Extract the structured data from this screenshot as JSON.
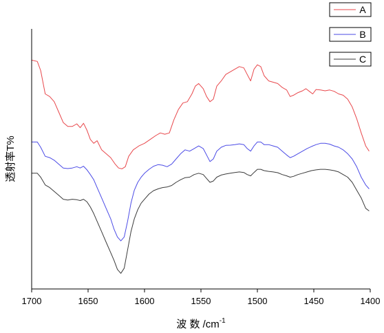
{
  "chart_data": {
    "type": "line",
    "xlabel": "波 数 /cm",
    "xlabel_sup": "-1",
    "ylabel": "透射率T%",
    "xlim": [
      1700,
      1400
    ],
    "x_reversed": true,
    "x_ticks": [
      "1700",
      "1650",
      "1600",
      "1550",
      "1500",
      "1450",
      "1400"
    ],
    "y_tick_labels": false,
    "grid": false,
    "legend_position": "top-right",
    "series": [
      {
        "name": "A",
        "color": "#e8474b",
        "points": [
          [
            1700,
            0.88
          ],
          [
            1695,
            0.875
          ],
          [
            1692,
            0.84
          ],
          [
            1688,
            0.75
          ],
          [
            1684,
            0.74
          ],
          [
            1680,
            0.72
          ],
          [
            1676,
            0.68
          ],
          [
            1672,
            0.64
          ],
          [
            1668,
            0.625
          ],
          [
            1664,
            0.625
          ],
          [
            1660,
            0.635
          ],
          [
            1657,
            0.62
          ],
          [
            1654,
            0.637
          ],
          [
            1651,
            0.61
          ],
          [
            1648,
            0.575
          ],
          [
            1645,
            0.56
          ],
          [
            1642,
            0.57
          ],
          [
            1638,
            0.535
          ],
          [
            1634,
            0.52
          ],
          [
            1630,
            0.505
          ],
          [
            1626,
            0.48
          ],
          [
            1623,
            0.465
          ],
          [
            1620,
            0.462
          ],
          [
            1617,
            0.47
          ],
          [
            1614,
            0.51
          ],
          [
            1610,
            0.535
          ],
          [
            1605,
            0.55
          ],
          [
            1600,
            0.56
          ],
          [
            1595,
            0.575
          ],
          [
            1590,
            0.59
          ],
          [
            1586,
            0.6
          ],
          [
            1582,
            0.595
          ],
          [
            1578,
            0.6
          ],
          [
            1574,
            0.65
          ],
          [
            1570,
            0.69
          ],
          [
            1566,
            0.715
          ],
          [
            1562,
            0.72
          ],
          [
            1558,
            0.75
          ],
          [
            1555,
            0.78
          ],
          [
            1552,
            0.79
          ],
          [
            1548,
            0.77
          ],
          [
            1545,
            0.74
          ],
          [
            1542,
            0.72
          ],
          [
            1539,
            0.73
          ],
          [
            1536,
            0.78
          ],
          [
            1532,
            0.8
          ],
          [
            1528,
            0.825
          ],
          [
            1524,
            0.835
          ],
          [
            1520,
            0.845
          ],
          [
            1516,
            0.855
          ],
          [
            1512,
            0.85
          ],
          [
            1509,
            0.825
          ],
          [
            1506,
            0.8
          ],
          [
            1503,
            0.845
          ],
          [
            1500,
            0.862
          ],
          [
            1497,
            0.855
          ],
          [
            1494,
            0.82
          ],
          [
            1490,
            0.8
          ],
          [
            1486,
            0.795
          ],
          [
            1482,
            0.79
          ],
          [
            1478,
            0.775
          ],
          [
            1474,
            0.765
          ],
          [
            1471,
            0.74
          ],
          [
            1468,
            0.745
          ],
          [
            1464,
            0.755
          ],
          [
            1460,
            0.762
          ],
          [
            1457,
            0.77
          ],
          [
            1454,
            0.76
          ],
          [
            1451,
            0.75
          ],
          [
            1448,
            0.767
          ],
          [
            1444,
            0.765
          ],
          [
            1440,
            0.762
          ],
          [
            1436,
            0.765
          ],
          [
            1432,
            0.76
          ],
          [
            1428,
            0.75
          ],
          [
            1424,
            0.745
          ],
          [
            1420,
            0.73
          ],
          [
            1416,
            0.7
          ],
          [
            1412,
            0.655
          ],
          [
            1408,
            0.6
          ],
          [
            1404,
            0.55
          ],
          [
            1401,
            0.53
          ]
        ]
      },
      {
        "name": "B",
        "color": "#4a4ae6",
        "points": [
          [
            1700,
            0.565
          ],
          [
            1695,
            0.565
          ],
          [
            1692,
            0.545
          ],
          [
            1688,
            0.51
          ],
          [
            1684,
            0.505
          ],
          [
            1680,
            0.495
          ],
          [
            1676,
            0.48
          ],
          [
            1672,
            0.465
          ],
          [
            1668,
            0.463
          ],
          [
            1664,
            0.465
          ],
          [
            1660,
            0.47
          ],
          [
            1657,
            0.465
          ],
          [
            1654,
            0.472
          ],
          [
            1651,
            0.458
          ],
          [
            1648,
            0.44
          ],
          [
            1645,
            0.42
          ],
          [
            1642,
            0.39
          ],
          [
            1638,
            0.35
          ],
          [
            1634,
            0.31
          ],
          [
            1630,
            0.27
          ],
          [
            1627,
            0.23
          ],
          [
            1624,
            0.2
          ],
          [
            1621,
            0.185
          ],
          [
            1618,
            0.2
          ],
          [
            1615,
            0.26
          ],
          [
            1612,
            0.33
          ],
          [
            1609,
            0.38
          ],
          [
            1606,
            0.41
          ],
          [
            1603,
            0.43
          ],
          [
            1600,
            0.445
          ],
          [
            1596,
            0.46
          ],
          [
            1592,
            0.472
          ],
          [
            1588,
            0.478
          ],
          [
            1584,
            0.476
          ],
          [
            1580,
            0.47
          ],
          [
            1576,
            0.48
          ],
          [
            1572,
            0.5
          ],
          [
            1568,
            0.52
          ],
          [
            1564,
            0.535
          ],
          [
            1560,
            0.53
          ],
          [
            1556,
            0.54
          ],
          [
            1552,
            0.55
          ],
          [
            1548,
            0.54
          ],
          [
            1545,
            0.515
          ],
          [
            1542,
            0.49
          ],
          [
            1539,
            0.5
          ],
          [
            1536,
            0.53
          ],
          [
            1532,
            0.545
          ],
          [
            1528,
            0.552
          ],
          [
            1524,
            0.553
          ],
          [
            1520,
            0.555
          ],
          [
            1516,
            0.558
          ],
          [
            1512,
            0.555
          ],
          [
            1509,
            0.54
          ],
          [
            1506,
            0.53
          ],
          [
            1503,
            0.55
          ],
          [
            1500,
            0.565
          ],
          [
            1497,
            0.565
          ],
          [
            1494,
            0.555
          ],
          [
            1490,
            0.555
          ],
          [
            1486,
            0.55
          ],
          [
            1482,
            0.545
          ],
          [
            1478,
            0.53
          ],
          [
            1474,
            0.515
          ],
          [
            1471,
            0.505
          ],
          [
            1468,
            0.51
          ],
          [
            1464,
            0.52
          ],
          [
            1460,
            0.53
          ],
          [
            1456,
            0.54
          ],
          [
            1452,
            0.548
          ],
          [
            1448,
            0.555
          ],
          [
            1444,
            0.56
          ],
          [
            1440,
            0.56
          ],
          [
            1436,
            0.557
          ],
          [
            1432,
            0.55
          ],
          [
            1428,
            0.545
          ],
          [
            1424,
            0.535
          ],
          [
            1420,
            0.52
          ],
          [
            1416,
            0.5
          ],
          [
            1412,
            0.47
          ],
          [
            1408,
            0.43
          ],
          [
            1404,
            0.4
          ],
          [
            1401,
            0.385
          ]
        ]
      },
      {
        "name": "C",
        "color": "#3a3a3a",
        "points": [
          [
            1700,
            0.445
          ],
          [
            1695,
            0.445
          ],
          [
            1692,
            0.43
          ],
          [
            1688,
            0.4
          ],
          [
            1684,
            0.39
          ],
          [
            1680,
            0.375
          ],
          [
            1676,
            0.36
          ],
          [
            1672,
            0.345
          ],
          [
            1668,
            0.342
          ],
          [
            1664,
            0.345
          ],
          [
            1660,
            0.343
          ],
          [
            1657,
            0.34
          ],
          [
            1654,
            0.345
          ],
          [
            1651,
            0.335
          ],
          [
            1648,
            0.315
          ],
          [
            1645,
            0.29
          ],
          [
            1642,
            0.26
          ],
          [
            1638,
            0.22
          ],
          [
            1634,
            0.18
          ],
          [
            1630,
            0.14
          ],
          [
            1627,
            0.11
          ],
          [
            1624,
            0.075
          ],
          [
            1621,
            0.06
          ],
          [
            1618,
            0.08
          ],
          [
            1615,
            0.15
          ],
          [
            1612,
            0.22
          ],
          [
            1609,
            0.27
          ],
          [
            1606,
            0.305
          ],
          [
            1603,
            0.33
          ],
          [
            1600,
            0.345
          ],
          [
            1596,
            0.365
          ],
          [
            1592,
            0.378
          ],
          [
            1588,
            0.385
          ],
          [
            1584,
            0.39
          ],
          [
            1580,
            0.392
          ],
          [
            1576,
            0.398
          ],
          [
            1572,
            0.41
          ],
          [
            1568,
            0.42
          ],
          [
            1564,
            0.428
          ],
          [
            1560,
            0.43
          ],
          [
            1556,
            0.44
          ],
          [
            1552,
            0.445
          ],
          [
            1548,
            0.44
          ],
          [
            1545,
            0.425
          ],
          [
            1542,
            0.41
          ],
          [
            1539,
            0.415
          ],
          [
            1536,
            0.43
          ],
          [
            1532,
            0.438
          ],
          [
            1528,
            0.442
          ],
          [
            1524,
            0.445
          ],
          [
            1520,
            0.448
          ],
          [
            1516,
            0.45
          ],
          [
            1512,
            0.448
          ],
          [
            1509,
            0.44
          ],
          [
            1506,
            0.435
          ],
          [
            1503,
            0.448
          ],
          [
            1500,
            0.46
          ],
          [
            1497,
            0.46
          ],
          [
            1494,
            0.455
          ],
          [
            1490,
            0.452
          ],
          [
            1486,
            0.45
          ],
          [
            1482,
            0.447
          ],
          [
            1478,
            0.44
          ],
          [
            1474,
            0.435
          ],
          [
            1471,
            0.43
          ],
          [
            1468,
            0.433
          ],
          [
            1464,
            0.44
          ],
          [
            1460,
            0.445
          ],
          [
            1456,
            0.45
          ],
          [
            1452,
            0.455
          ],
          [
            1448,
            0.458
          ],
          [
            1444,
            0.46
          ],
          [
            1440,
            0.46
          ],
          [
            1436,
            0.458
          ],
          [
            1432,
            0.455
          ],
          [
            1428,
            0.45
          ],
          [
            1424,
            0.44
          ],
          [
            1420,
            0.43
          ],
          [
            1416,
            0.41
          ],
          [
            1412,
            0.38
          ],
          [
            1408,
            0.35
          ],
          [
            1404,
            0.31
          ],
          [
            1401,
            0.3
          ]
        ]
      }
    ]
  }
}
